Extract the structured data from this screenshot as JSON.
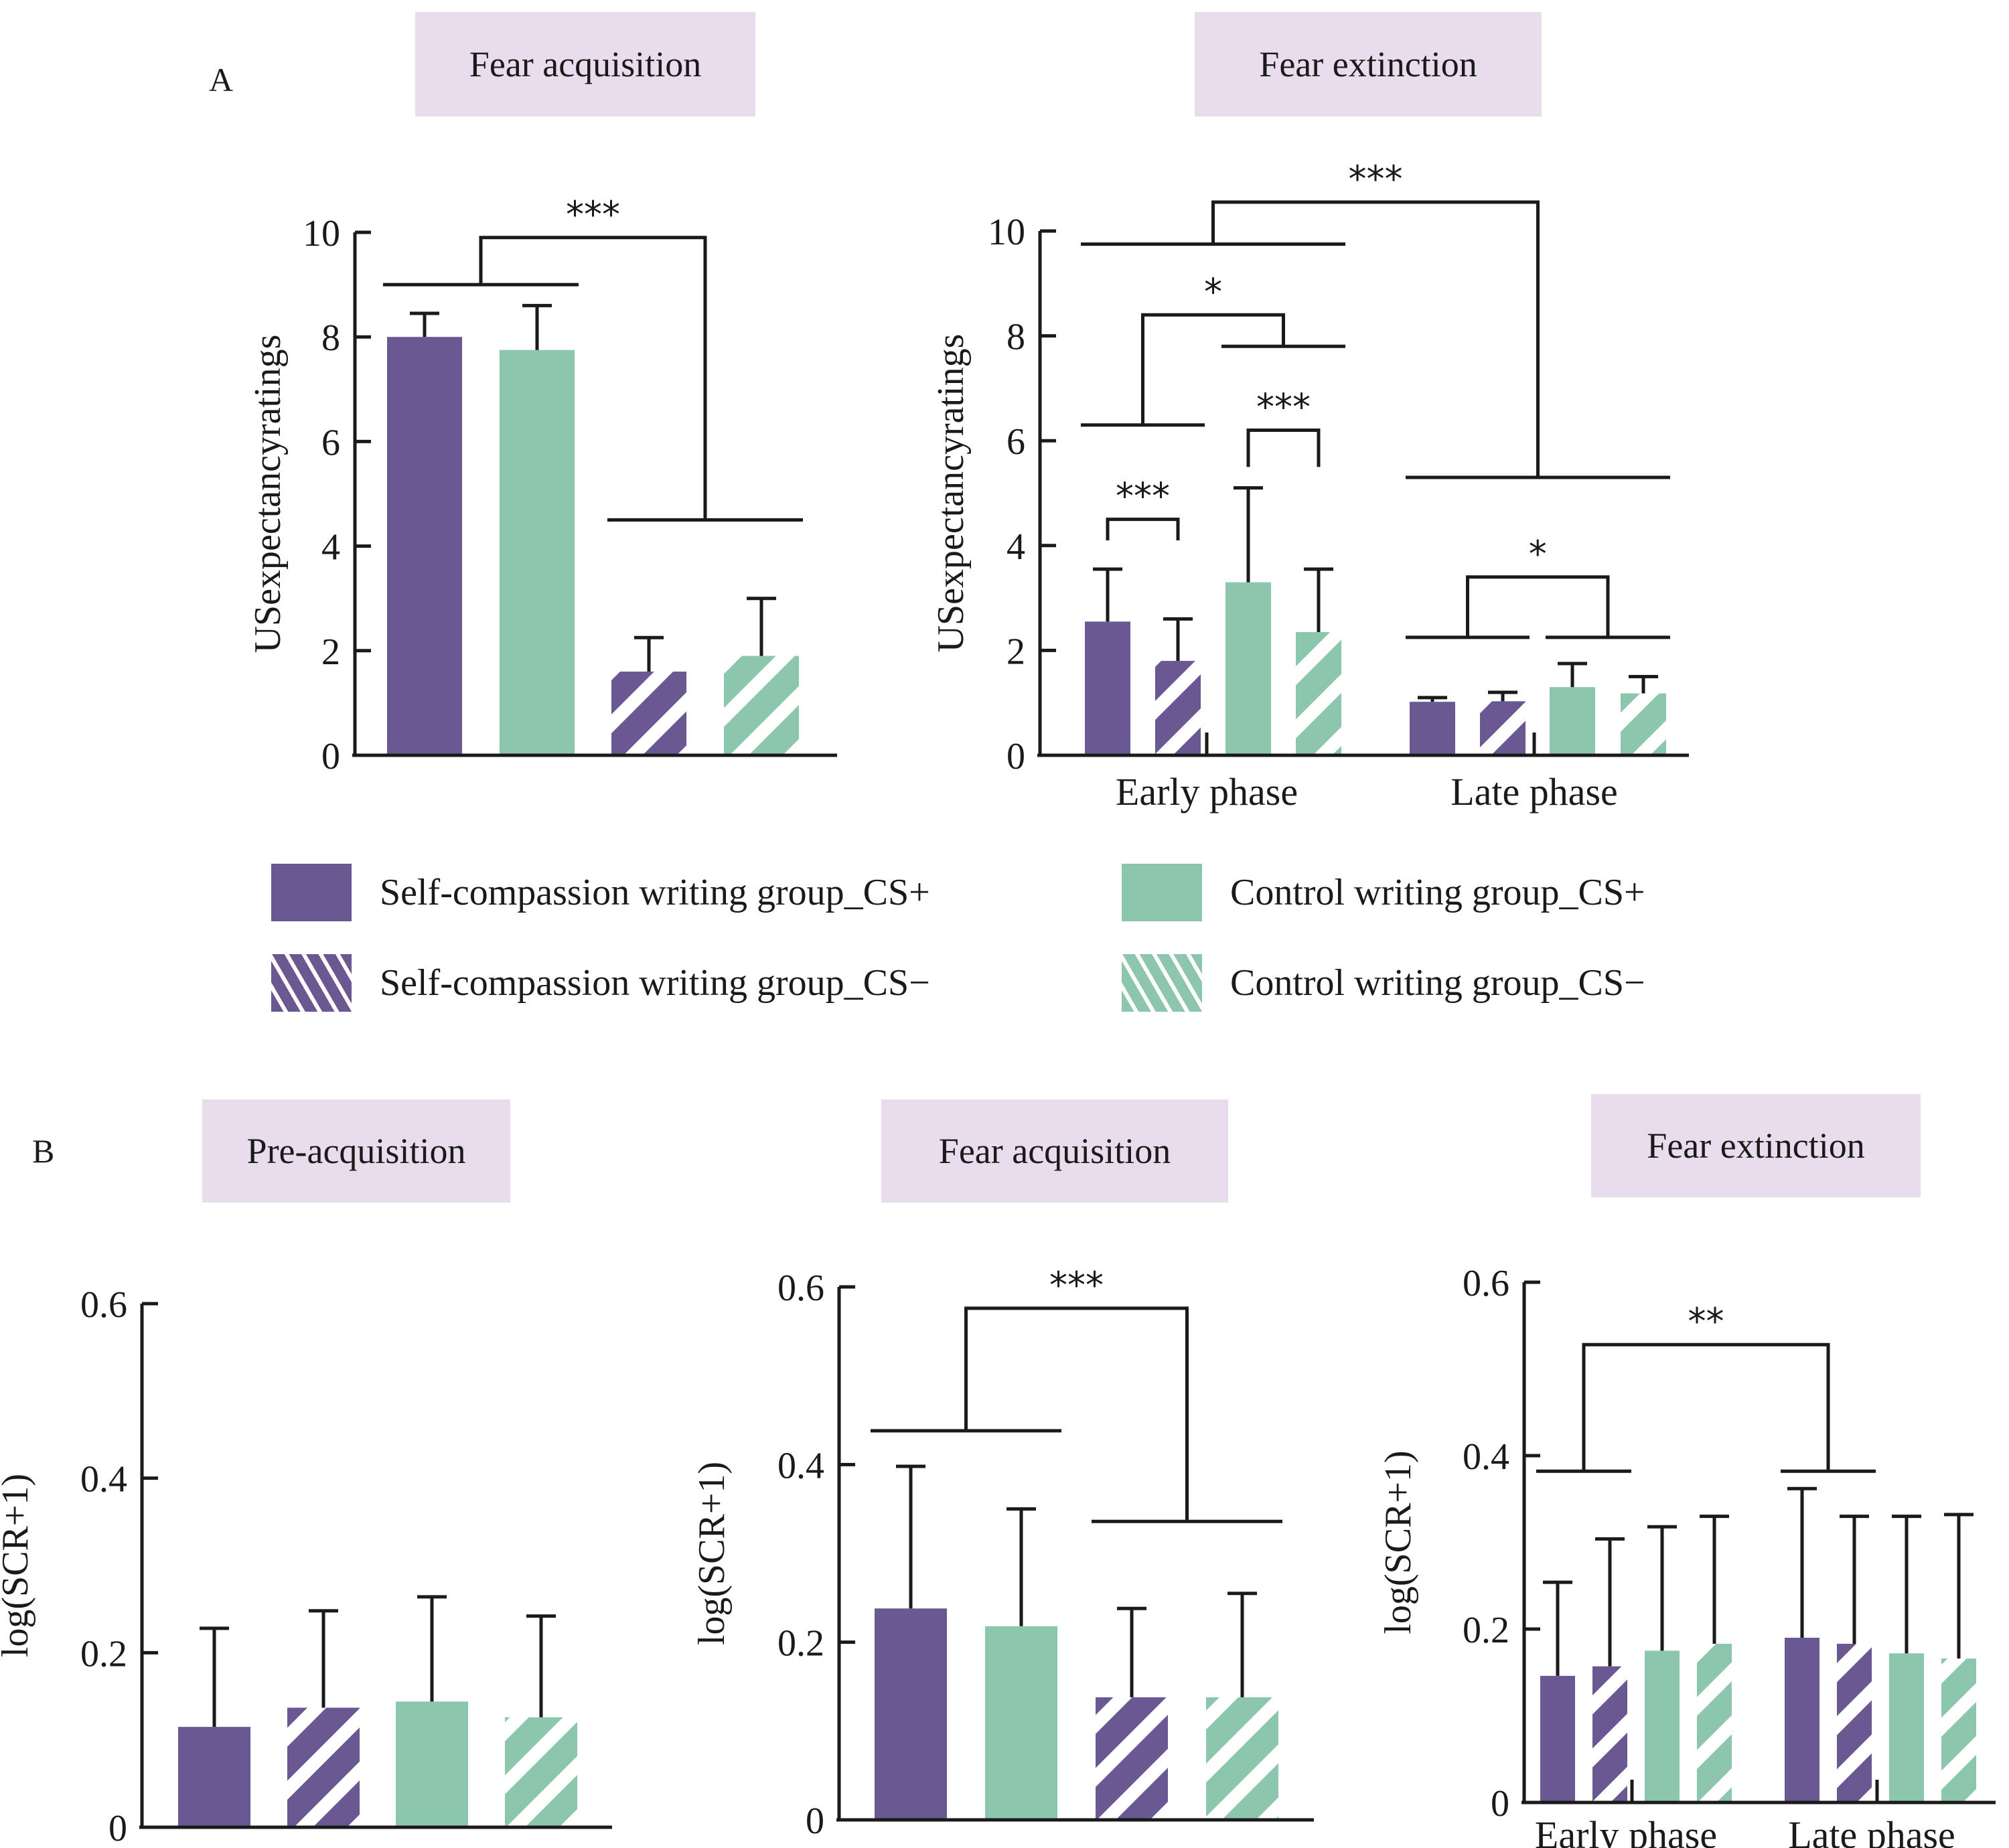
{
  "figure": {
    "panel_a_letter": "A",
    "panel_b_letter": "B"
  },
  "colors": {
    "self_compassion": "#6a5893",
    "control": "#8cc6ac",
    "title_bg": "#e9dcec",
    "axis": "#1a1a1a",
    "stripe": "#ffffff"
  },
  "legend": {
    "items": [
      {
        "label": "Self-compassion writing group_CS+",
        "group": "self_compassion",
        "hatched": false
      },
      {
        "label": "Control writing group_CS+",
        "group": "control",
        "hatched": false
      },
      {
        "label": "Self-compassion writing group_CS−",
        "group": "self_compassion",
        "hatched": true
      },
      {
        "label": "Control writing group_CS−",
        "group": "control",
        "hatched": true
      }
    ]
  },
  "chart_data": [
    {
      "id": "a1",
      "type": "bar",
      "title": "Fear acquisition",
      "ylabel": "USexpectancyratings",
      "xlabel": "",
      "ylim": [
        0,
        10
      ],
      "yticks": [
        0,
        2,
        4,
        6,
        8,
        10
      ],
      "ytick_labels": [
        "0",
        "2",
        "4",
        "6",
        "8",
        "10"
      ],
      "categories": [],
      "bars": [
        {
          "series": "Self-compassion writing group_CS+",
          "group": "self_compassion",
          "hatched": false,
          "value": 8.0,
          "err_top": 8.45
        },
        {
          "series": "Control writing group_CS+",
          "group": "control",
          "hatched": false,
          "value": 7.75,
          "err_top": 8.6
        },
        {
          "series": "Self-compassion writing group_CS−",
          "group": "self_compassion",
          "hatched": true,
          "value": 1.6,
          "err_top": 2.25
        },
        {
          "series": "Control writing group_CS−",
          "group": "control",
          "hatched": true,
          "value": 1.9,
          "err_top": 3.0
        }
      ],
      "significance": [
        {
          "label": "***",
          "left_bars": [
            0,
            1
          ],
          "right_bars": [
            2,
            3
          ],
          "left_level": 9.0,
          "right_level": 4.5,
          "top_level": 9.9
        }
      ]
    },
    {
      "id": "a2",
      "type": "bar",
      "title": "Fear extinction",
      "ylabel": "USexpectancyratings",
      "xlabel": "",
      "ylim": [
        0,
        10
      ],
      "yticks": [
        0,
        2,
        4,
        6,
        8,
        10
      ],
      "ytick_labels": [
        "0",
        "2",
        "4",
        "6",
        "8",
        "10"
      ],
      "categories": [
        "Early phase",
        "Late phase"
      ],
      "bars": [
        {
          "category": "Early phase",
          "series": "Self-compassion writing group_CS+",
          "group": "self_compassion",
          "hatched": false,
          "value": 2.55,
          "err_top": 3.55
        },
        {
          "category": "Early phase",
          "series": "Self-compassion writing group_CS−",
          "group": "self_compassion",
          "hatched": true,
          "value": 1.8,
          "err_top": 2.6
        },
        {
          "category": "Early phase",
          "series": "Control writing group_CS+",
          "group": "control",
          "hatched": false,
          "value": 3.3,
          "err_top": 5.1
        },
        {
          "category": "Early phase",
          "series": "Control writing group_CS−",
          "group": "control",
          "hatched": true,
          "value": 2.35,
          "err_top": 3.55
        },
        {
          "category": "Late phase",
          "series": "Self-compassion writing group_CS+",
          "group": "self_compassion",
          "hatched": false,
          "value": 1.02,
          "err_top": 1.1
        },
        {
          "category": "Late phase",
          "series": "Self-compassion writing group_CS−",
          "group": "self_compassion",
          "hatched": true,
          "value": 1.03,
          "err_top": 1.2
        },
        {
          "category": "Late phase",
          "series": "Control writing group_CS+",
          "group": "control",
          "hatched": false,
          "value": 1.3,
          "err_top": 1.75
        },
        {
          "category": "Late phase",
          "series": "Control writing group_CS−",
          "group": "control",
          "hatched": true,
          "value": 1.18,
          "err_top": 1.5
        }
      ],
      "significance": [
        {
          "label": "***",
          "left_bars": [
            0
          ],
          "right_bars": [
            1
          ],
          "left_level": 4.1,
          "right_level": 4.1,
          "top_level": 4.5
        },
        {
          "label": "***",
          "left_bars": [
            2
          ],
          "right_bars": [
            3
          ],
          "left_level": 5.5,
          "right_level": 5.5,
          "top_level": 6.2
        },
        {
          "label": "*",
          "left_bars": [
            0,
            1
          ],
          "right_bars": [
            2,
            3
          ],
          "left_level": 6.3,
          "right_level": 7.8,
          "top_level": 8.4
        },
        {
          "label": "*",
          "left_bars": [
            4,
            5
          ],
          "right_bars": [
            6,
            7
          ],
          "left_level": 2.25,
          "right_level": 2.25,
          "top_level": 3.4
        },
        {
          "label": "***",
          "left_bars": [
            0,
            3
          ],
          "right_bars": [
            4,
            7
          ],
          "left_level": 9.75,
          "right_level": 5.3,
          "top_level": 10.55
        }
      ]
    },
    {
      "id": "b1",
      "type": "bar",
      "title": "Pre-acquisition",
      "ylabel": "log(SCR+1)",
      "xlabel": "",
      "ylim": [
        0,
        0.6
      ],
      "yticks": [
        0,
        0.2,
        0.4,
        0.6
      ],
      "ytick_labels": [
        "0",
        "0.2",
        "0.4",
        "0.6"
      ],
      "categories": [],
      "bars": [
        {
          "series": "Self-compassion writing group_CS+",
          "group": "self_compassion",
          "hatched": false,
          "value": 0.115,
          "err_top": 0.228
        },
        {
          "series": "Self-compassion writing group_CS−",
          "group": "self_compassion",
          "hatched": true,
          "value": 0.137,
          "err_top": 0.248
        },
        {
          "series": "Control writing group_CS+",
          "group": "control",
          "hatched": false,
          "value": 0.144,
          "err_top": 0.264
        },
        {
          "series": "Control writing group_CS−",
          "group": "control",
          "hatched": true,
          "value": 0.126,
          "err_top": 0.242
        }
      ],
      "significance": []
    },
    {
      "id": "b2",
      "type": "bar",
      "title": "Fear acquisition",
      "ylabel": "log(SCR+1)",
      "xlabel": "",
      "ylim": [
        0,
        0.6
      ],
      "yticks": [
        0,
        0.2,
        0.4,
        0.6
      ],
      "ytick_labels": [
        "0",
        "0.2",
        "0.4",
        "0.6"
      ],
      "categories": [],
      "bars": [
        {
          "series": "Self-compassion writing group_CS+",
          "group": "self_compassion",
          "hatched": false,
          "value": 0.238,
          "err_top": 0.398
        },
        {
          "series": "Control writing group_CS+",
          "group": "control",
          "hatched": false,
          "value": 0.218,
          "err_top": 0.35
        },
        {
          "series": "Self-compassion writing group_CS−",
          "group": "self_compassion",
          "hatched": true,
          "value": 0.138,
          "err_top": 0.238
        },
        {
          "series": "Control writing group_CS−",
          "group": "control",
          "hatched": true,
          "value": 0.138,
          "err_top": 0.255
        }
      ],
      "significance": [
        {
          "label": "***",
          "left_bars": [
            0,
            1
          ],
          "right_bars": [
            2,
            3
          ],
          "left_level": 0.438,
          "right_level": 0.336,
          "top_level": 0.576
        }
      ]
    },
    {
      "id": "b3",
      "type": "bar",
      "title": "Fear extinction",
      "ylabel": "log(SCR+1)",
      "xlabel": "",
      "ylim": [
        0,
        0.6
      ],
      "yticks": [
        0,
        0.2,
        0.4,
        0.6
      ],
      "ytick_labels": [
        "0",
        "0.2",
        "0.4",
        "0.6"
      ],
      "categories": [
        "Early phase",
        "Late phase"
      ],
      "bars": [
        {
          "category": "Early phase",
          "series": "Self-compassion writing group_CS+",
          "group": "self_compassion",
          "hatched": false,
          "value": 0.146,
          "err_top": 0.254
        },
        {
          "category": "Early phase",
          "series": "Self-compassion writing group_CS−",
          "group": "self_compassion",
          "hatched": true,
          "value": 0.157,
          "err_top": 0.304
        },
        {
          "category": "Early phase",
          "series": "Control writing group_CS+",
          "group": "control",
          "hatched": false,
          "value": 0.175,
          "err_top": 0.318
        },
        {
          "category": "Early phase",
          "series": "Control writing group_CS−",
          "group": "control",
          "hatched": true,
          "value": 0.183,
          "err_top": 0.33
        },
        {
          "category": "Late phase",
          "series": "Self-compassion writing group_CS+",
          "group": "self_compassion",
          "hatched": false,
          "value": 0.19,
          "err_top": 0.362
        },
        {
          "category": "Late phase",
          "series": "Self-compassion writing group_CS−",
          "group": "self_compassion",
          "hatched": true,
          "value": 0.183,
          "err_top": 0.33
        },
        {
          "category": "Late phase",
          "series": "Control writing group_CS+",
          "group": "control",
          "hatched": false,
          "value": 0.172,
          "err_top": 0.33
        },
        {
          "category": "Late phase",
          "series": "Control writing group_CS−",
          "group": "control",
          "hatched": true,
          "value": 0.166,
          "err_top": 0.332
        }
      ],
      "significance": [
        {
          "label": "**",
          "left_bars": [
            0,
            1
          ],
          "right_bars": [
            4,
            5
          ],
          "left_level": 0.382,
          "right_level": 0.382,
          "top_level": 0.528
        }
      ]
    }
  ]
}
